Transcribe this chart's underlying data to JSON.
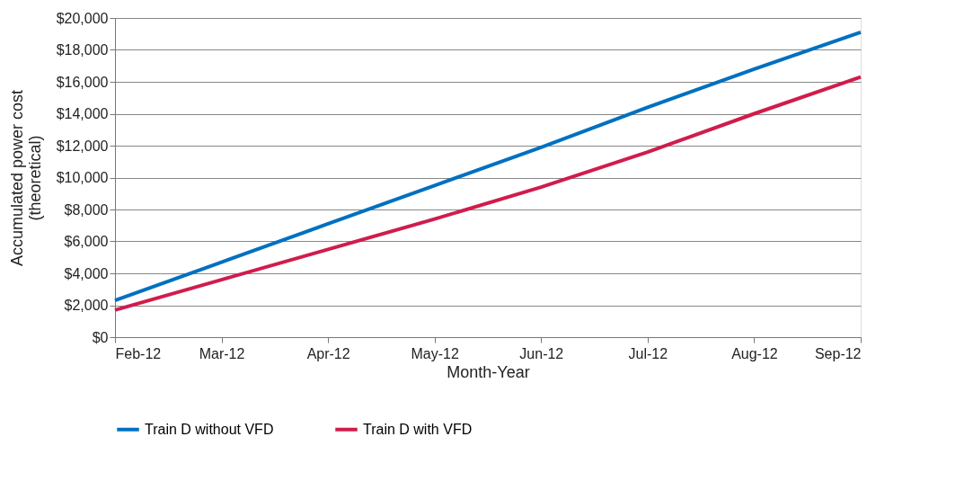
{
  "chart_data": {
    "type": "line",
    "xlabel": "Month-Year",
    "ylabel": "Accumulated power cost\n(theoretical)",
    "categories": [
      "Feb-12",
      "Mar-12",
      "Apr-12",
      "May-12",
      "Jun-12",
      "Jul-12",
      "Aug-12",
      "Sep-12"
    ],
    "series": [
      {
        "name": "Train D without VFD",
        "color": "#0070c0",
        "values": [
          2300,
          4700,
          7100,
          9500,
          11900,
          14400,
          16800,
          19100
        ]
      },
      {
        "name": "Train D with VFD",
        "color": "#d01c4c",
        "values": [
          1700,
          3600,
          5500,
          7400,
          9400,
          11600,
          14000,
          16300
        ]
      }
    ],
    "ylim": [
      0,
      20000
    ],
    "yticks": [
      {
        "value": 0,
        "label": "$0"
      },
      {
        "value": 2000,
        "label": "$2,000"
      },
      {
        "value": 4000,
        "label": "$4,000"
      },
      {
        "value": 6000,
        "label": "$6,000"
      },
      {
        "value": 8000,
        "label": "$8,000"
      },
      {
        "value": 10000,
        "label": "$10,000"
      },
      {
        "value": 12000,
        "label": "$12,000"
      },
      {
        "value": 14000,
        "label": "$14,000"
      },
      {
        "value": 16000,
        "label": "$16,000"
      },
      {
        "value": 18000,
        "label": "$18,000"
      },
      {
        "value": 20000,
        "label": "$20,000"
      }
    ],
    "grid": "y",
    "legend": "bottom",
    "marker": "none",
    "line_style": "solid"
  }
}
